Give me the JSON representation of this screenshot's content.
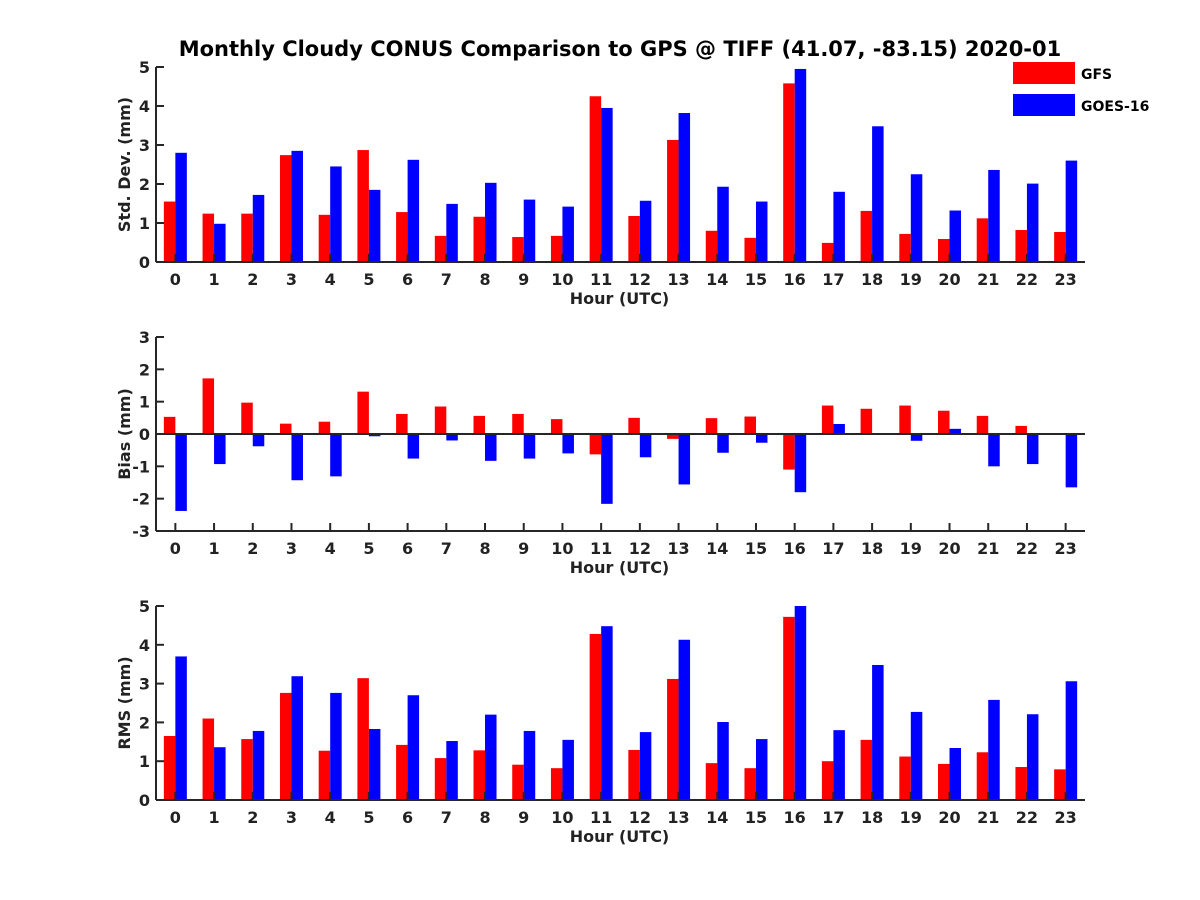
{
  "chart_title": "Monthly Cloudy CONUS Comparison to GPS @ TIFF (41.07, -83.15) 2020-01",
  "legend": [
    {
      "name": "GFS",
      "color": "#ff0000"
    },
    {
      "name": "GOES-16",
      "color": "#0000ff"
    }
  ],
  "chart_data": [
    {
      "type": "bar",
      "xlabel": "Hour (UTC)",
      "ylabel": "Std. Dev. (mm)",
      "ylim": [
        0,
        5
      ],
      "yticks": [
        0,
        1,
        2,
        3,
        4,
        5
      ],
      "categories": [
        "0",
        "1",
        "2",
        "3",
        "4",
        "5",
        "6",
        "7",
        "8",
        "9",
        "10",
        "11",
        "12",
        "13",
        "14",
        "15",
        "16",
        "17",
        "18",
        "19",
        "20",
        "21",
        "22",
        "23"
      ],
      "series": [
        {
          "name": "GFS",
          "color": "#ff0000",
          "values": [
            1.55,
            1.24,
            1.24,
            2.74,
            1.21,
            2.87,
            1.28,
            0.67,
            1.16,
            0.64,
            0.67,
            4.25,
            1.18,
            3.13,
            0.8,
            0.62,
            4.58,
            0.49,
            1.31,
            0.72,
            0.59,
            1.12,
            0.82,
            0.77
          ]
        },
        {
          "name": "GOES-16",
          "color": "#0000ff",
          "values": [
            2.8,
            0.98,
            1.72,
            2.85,
            2.45,
            1.85,
            2.62,
            1.49,
            2.03,
            1.6,
            1.42,
            3.95,
            1.57,
            3.82,
            1.93,
            1.55,
            4.95,
            1.8,
            3.48,
            2.25,
            1.32,
            2.36,
            2.01,
            2.6
          ]
        }
      ]
    },
    {
      "type": "bar",
      "xlabel": "Hour (UTC)",
      "ylabel": "Bias (mm)",
      "ylim": [
        -3,
        3
      ],
      "yticks": [
        -3,
        -2,
        -1,
        0,
        1,
        2,
        3
      ],
      "categories": [
        "0",
        "1",
        "2",
        "3",
        "4",
        "5",
        "6",
        "7",
        "8",
        "9",
        "10",
        "11",
        "12",
        "13",
        "14",
        "15",
        "16",
        "17",
        "18",
        "19",
        "20",
        "21",
        "22",
        "23"
      ],
      "series": [
        {
          "name": "GFS",
          "color": "#ff0000",
          "values": [
            0.53,
            1.72,
            0.97,
            0.32,
            0.38,
            1.31,
            0.62,
            0.85,
            0.56,
            0.62,
            0.46,
            -0.63,
            0.5,
            -0.15,
            0.49,
            0.54,
            -1.1,
            0.88,
            0.78,
            0.88,
            0.72,
            0.56,
            0.25,
            0.0
          ]
        },
        {
          "name": "GOES-16",
          "color": "#0000ff",
          "values": [
            -2.38,
            -0.93,
            -0.38,
            -1.43,
            -1.31,
            -0.07,
            -0.76,
            -0.2,
            -0.83,
            -0.76,
            -0.6,
            -2.16,
            -0.72,
            -1.56,
            -0.58,
            -0.27,
            -1.8,
            0.31,
            -0.03,
            -0.21,
            0.16,
            -1.0,
            -0.93,
            -1.65
          ]
        }
      ]
    },
    {
      "type": "bar",
      "xlabel": "Hour (UTC)",
      "ylabel": "RMS (mm)",
      "ylim": [
        0,
        5
      ],
      "yticks": [
        0,
        1,
        2,
        3,
        4,
        5
      ],
      "categories": [
        "0",
        "1",
        "2",
        "3",
        "4",
        "5",
        "6",
        "7",
        "8",
        "9",
        "10",
        "11",
        "12",
        "13",
        "14",
        "15",
        "16",
        "17",
        "18",
        "19",
        "20",
        "21",
        "22",
        "23"
      ],
      "series": [
        {
          "name": "GFS",
          "color": "#ff0000",
          "values": [
            1.65,
            2.1,
            1.57,
            2.76,
            1.27,
            3.14,
            1.42,
            1.08,
            1.28,
            0.91,
            0.82,
            4.28,
            1.29,
            3.12,
            0.95,
            0.82,
            4.72,
            1.0,
            1.55,
            1.12,
            0.93,
            1.23,
            0.85,
            0.79
          ]
        },
        {
          "name": "GOES-16",
          "color": "#0000ff",
          "values": [
            3.7,
            1.36,
            1.78,
            3.19,
            2.76,
            1.83,
            2.7,
            1.52,
            2.2,
            1.78,
            1.55,
            4.48,
            1.75,
            4.13,
            2.01,
            1.57,
            5.0,
            1.8,
            3.48,
            2.27,
            1.34,
            2.58,
            2.21,
            3.06
          ]
        }
      ]
    }
  ]
}
